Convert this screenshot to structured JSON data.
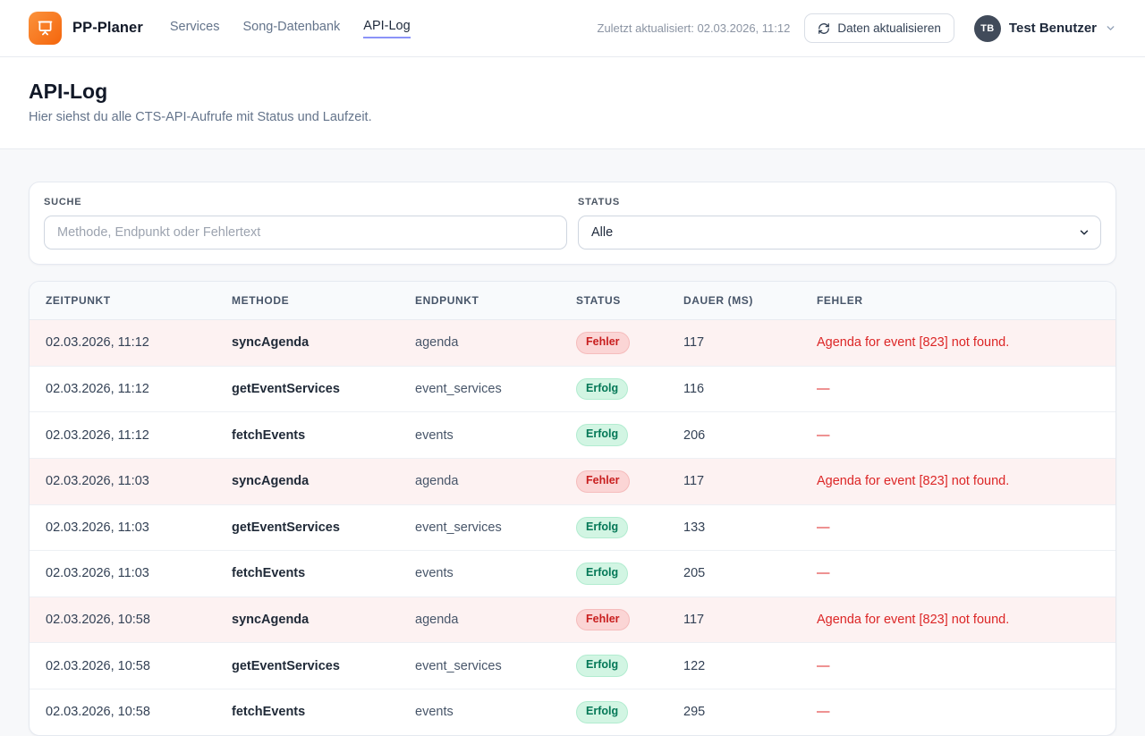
{
  "header": {
    "brand": "PP-Planer",
    "nav": [
      {
        "label": "Services",
        "active": false
      },
      {
        "label": "Song-Datenbank",
        "active": false
      },
      {
        "label": "API-Log",
        "active": true
      }
    ],
    "last_updated": "Zuletzt aktualisiert: 02.03.2026, 11:12",
    "refresh_button_label": "Daten aktualisieren",
    "user": {
      "initials": "TB",
      "name": "Test Benutzer"
    },
    "icons": {
      "logo": "presentation-board-icon",
      "refresh": "refresh-icon",
      "chevron": "chevron-down-icon"
    }
  },
  "page": {
    "title": "API-Log",
    "subtitle": "Hier siehst du alle CTS-API-Aufrufe mit Status und Laufzeit."
  },
  "filters": {
    "search_label": "SUCHE",
    "search_placeholder": "Methode, Endpunkt oder Fehlertext",
    "search_value": "",
    "status_label": "STATUS",
    "status_value": "Alle"
  },
  "table": {
    "columns": [
      "ZEITPUNKT",
      "METHODE",
      "ENDPUNKT",
      "STATUS",
      "DAUER (MS)",
      "FEHLER"
    ],
    "rows": [
      {
        "time": "02.03.2026, 11:12",
        "method": "syncAgenda",
        "endpoint": "agenda",
        "status": "Fehler",
        "duration": "117",
        "error": "Agenda for event [823] not found."
      },
      {
        "time": "02.03.2026, 11:12",
        "method": "getEventServices",
        "endpoint": "event_services",
        "status": "Erfolg",
        "duration": "116",
        "error": "—"
      },
      {
        "time": "02.03.2026, 11:12",
        "method": "fetchEvents",
        "endpoint": "events",
        "status": "Erfolg",
        "duration": "206",
        "error": "—"
      },
      {
        "time": "02.03.2026, 11:03",
        "method": "syncAgenda",
        "endpoint": "agenda",
        "status": "Fehler",
        "duration": "117",
        "error": "Agenda for event [823] not found."
      },
      {
        "time": "02.03.2026, 11:03",
        "method": "getEventServices",
        "endpoint": "event_services",
        "status": "Erfolg",
        "duration": "133",
        "error": "—"
      },
      {
        "time": "02.03.2026, 11:03",
        "method": "fetchEvents",
        "endpoint": "events",
        "status": "Erfolg",
        "duration": "205",
        "error": "—"
      },
      {
        "time": "02.03.2026, 10:58",
        "method": "syncAgenda",
        "endpoint": "agenda",
        "status": "Fehler",
        "duration": "117",
        "error": "Agenda for event [823] not found."
      },
      {
        "time": "02.03.2026, 10:58",
        "method": "getEventServices",
        "endpoint": "event_services",
        "status": "Erfolg",
        "duration": "122",
        "error": "—"
      },
      {
        "time": "02.03.2026, 10:58",
        "method": "fetchEvents",
        "endpoint": "events",
        "status": "Erfolg",
        "duration": "295",
        "error": "—"
      }
    ],
    "error_status_label": "Fehler",
    "success_status_label": "Erfolg"
  },
  "colors": {
    "brand_orange_start": "#fb923c",
    "brand_orange_end": "#f4650c",
    "active_nav_underline": "#8b93f8",
    "error_text": "#dc2626",
    "error_row_bg": "#fdf2f2",
    "error_badge_bg": "#fbd5d5",
    "error_badge_text": "#c81e1e",
    "success_badge_bg": "#d2f5e3",
    "success_badge_text": "#047857",
    "avatar_bg": "#414b5a"
  }
}
